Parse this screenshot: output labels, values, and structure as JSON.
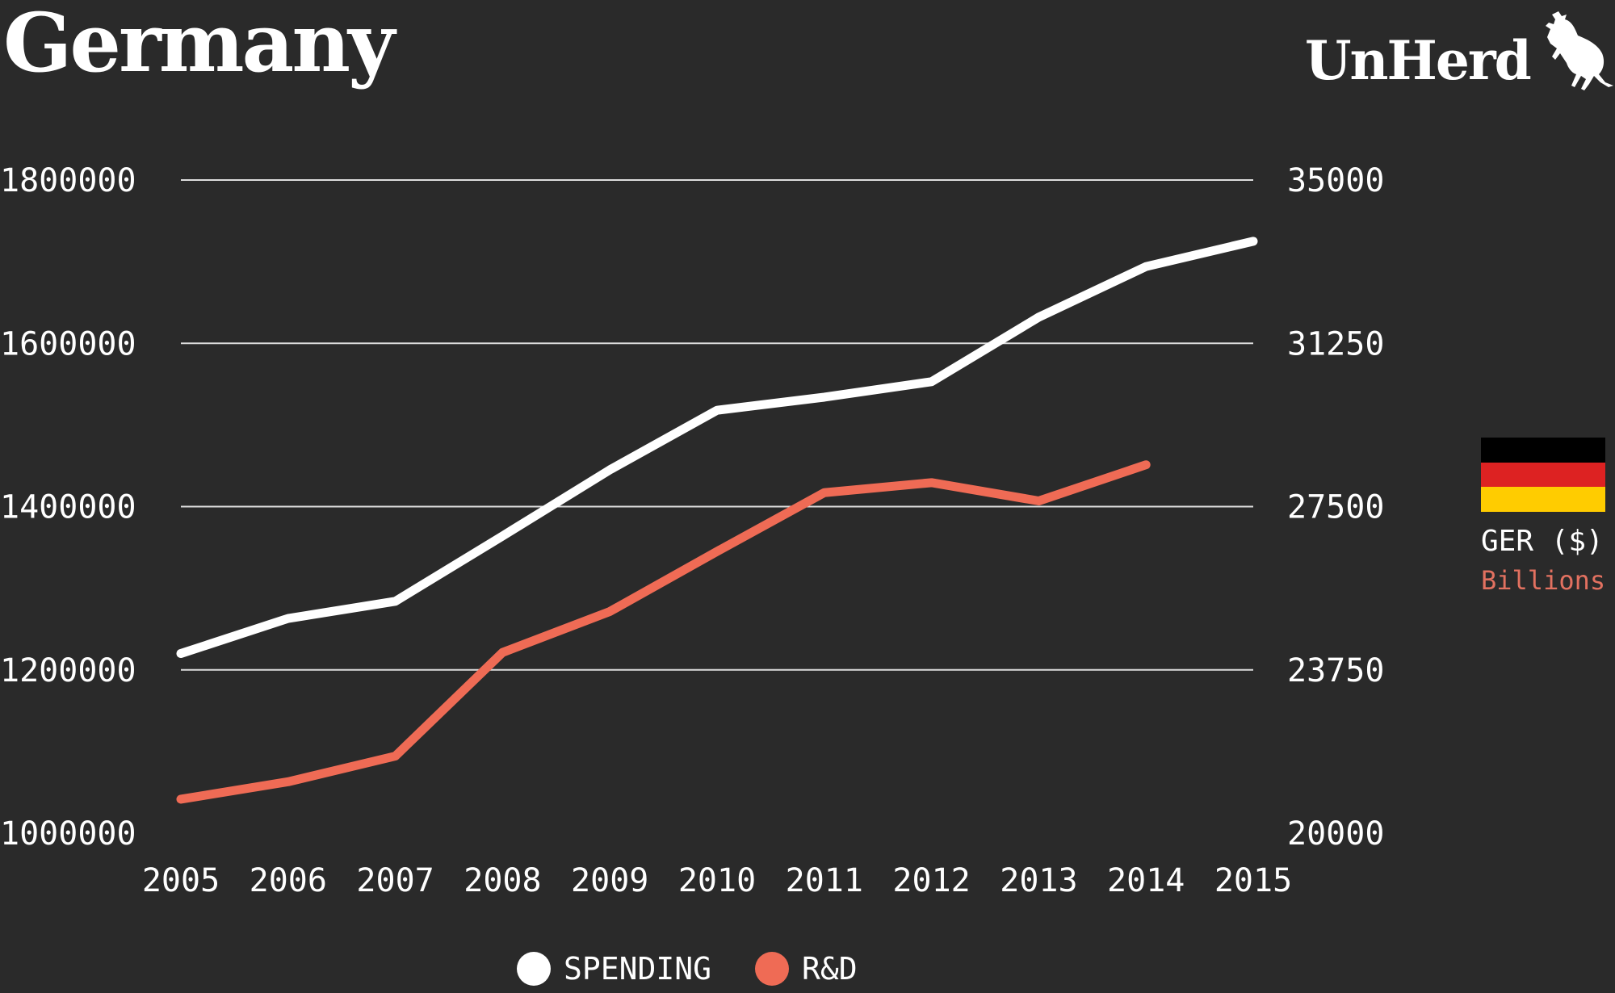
{
  "header": {
    "title": "Germany",
    "logo_text": "UnHerd"
  },
  "side_legend": {
    "flag_colors": [
      "#000000",
      "#dd2222",
      "#ffcc00"
    ],
    "country_label": "GER ($)",
    "unit_label": "Billions"
  },
  "colors": {
    "background": "#2a2a2a",
    "spending": "#ffffff",
    "rd": "#ef6b55",
    "grid": "#dddddd"
  },
  "chart_data": {
    "type": "line",
    "title": "Germany",
    "xlabel": "",
    "x": [
      2005,
      2006,
      2007,
      2008,
      2009,
      2010,
      2011,
      2012,
      2013,
      2014,
      2015
    ],
    "x_tick_labels": [
      "2005",
      "2006",
      "2007",
      "2008",
      "2009",
      "2010",
      "2011",
      "2012",
      "2013",
      "2014",
      "2015"
    ],
    "y_left": {
      "ylim": [
        1000000,
        1800000
      ],
      "ticks": [
        "1000000",
        "1200000",
        "1400000",
        "1600000",
        "1800000"
      ]
    },
    "y_right": {
      "ylim": [
        20000,
        35000
      ],
      "ticks": [
        "20000",
        "23750",
        "27500",
        "31250",
        "35000"
      ]
    },
    "grid": true,
    "legend_position": "bottom-center",
    "series": [
      {
        "name": "SPENDING",
        "axis": "left",
        "color": "#ffffff",
        "values": [
          1220000,
          1263000,
          1284000,
          1364000,
          1445000,
          1518000,
          1534000,
          1553000,
          1632000,
          1694000,
          1725000
        ]
      },
      {
        "name": "R&D",
        "axis": "right",
        "color": "#ef6b55",
        "values": [
          20780,
          21180,
          21770,
          24150,
          25090,
          26470,
          27820,
          28050,
          27630,
          28460,
          null
        ]
      }
    ]
  }
}
